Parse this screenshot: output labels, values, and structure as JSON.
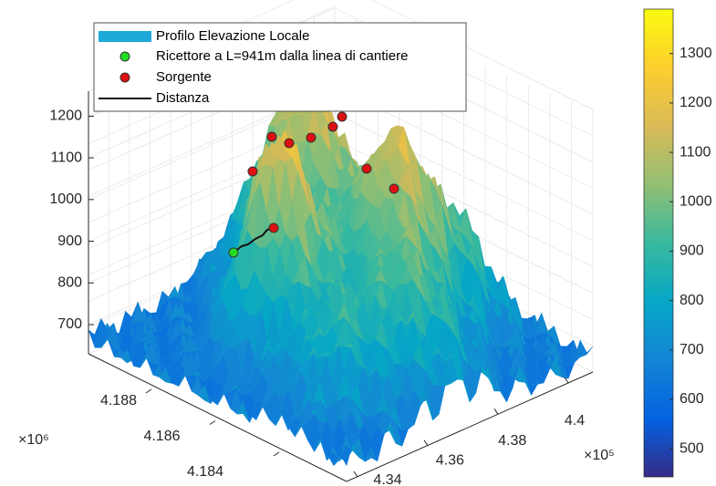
{
  "chart_data": {
    "type": "surface3d",
    "legend": [
      "Profilo Elevazione Locale",
      "Ricettore a L=941m dalla linea di cantiere",
      "Sorgente",
      "Distanza"
    ],
    "legend_colors": [
      "#1ea8d8",
      "#22dd22",
      "#dd1111",
      "#111111"
    ],
    "zlim": [
      630,
      1260
    ],
    "zticks": [
      700,
      800,
      900,
      1000,
      1100,
      1200
    ],
    "xticks": [
      4.34,
      4.36,
      4.38,
      4.4
    ],
    "x_multiplier": "×10⁵",
    "yticks": [
      4.184,
      4.186,
      4.188
    ],
    "y_multiplier": "×10⁶",
    "clim": [
      443,
      1390
    ],
    "cticks": [
      500,
      600,
      700,
      800,
      900,
      1000,
      1100,
      1200,
      1300
    ],
    "colormap": "parula",
    "grid": true
  }
}
